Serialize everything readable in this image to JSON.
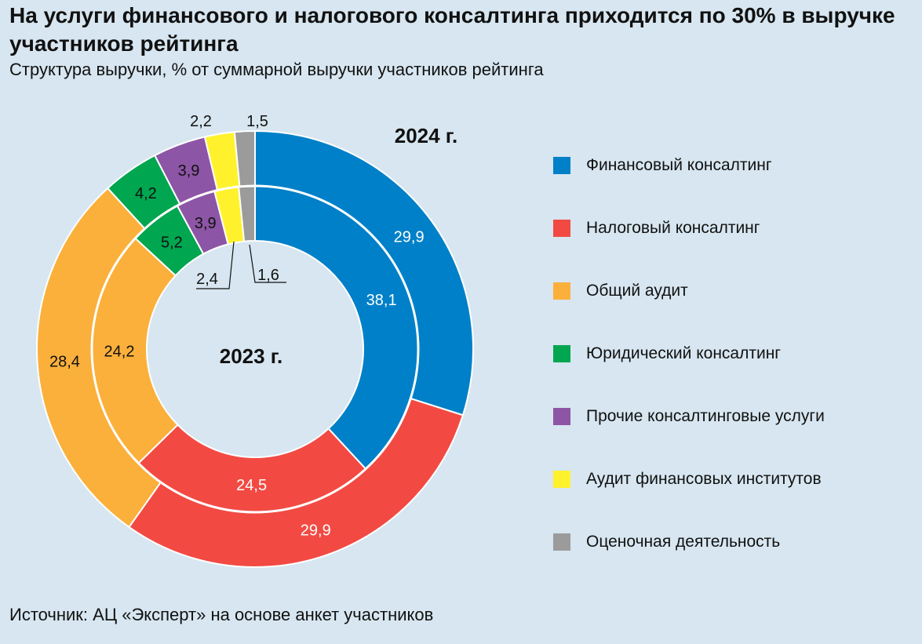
{
  "title": "На услуги финансового и налогового консалтинга приходится по 30% в выручке участников рейтинга",
  "subtitle": "Структура выручки, % от суммарной выручки участников рейтинга",
  "source": "Источник: АЦ «Эксперт» на основе анкет участников",
  "chart_data": {
    "type": "donut",
    "categories": [
      "Финансовый консалтинг",
      "Налоговый консалтинг",
      "Общий аудит",
      "Юридический консалтинг",
      "Прочие консалтинговые услуги",
      "Аудит финансовых институтов",
      "Оценочная деятельность"
    ],
    "colors": [
      "#0080c8",
      "#f24a43",
      "#fbb03b",
      "#00a650",
      "#8d55a5",
      "#fff22d",
      "#9b9b9b"
    ],
    "series": [
      {
        "name": "2024 г.",
        "ring": "outer",
        "values": [
          29.9,
          29.9,
          28.4,
          4.2,
          3.9,
          2.2,
          1.5
        ],
        "labels": [
          "29,9",
          "29,9",
          "28,4",
          "4,2",
          "3,9",
          "2,2",
          "1,5"
        ]
      },
      {
        "name": "2023 г.",
        "ring": "inner",
        "values": [
          38.1,
          24.5,
          24.2,
          5.2,
          3.9,
          2.4,
          1.6
        ],
        "labels": [
          "38,1",
          "24,5",
          "24,2",
          "5,2",
          "3,9",
          "2,4",
          "1,6"
        ]
      }
    ]
  }
}
